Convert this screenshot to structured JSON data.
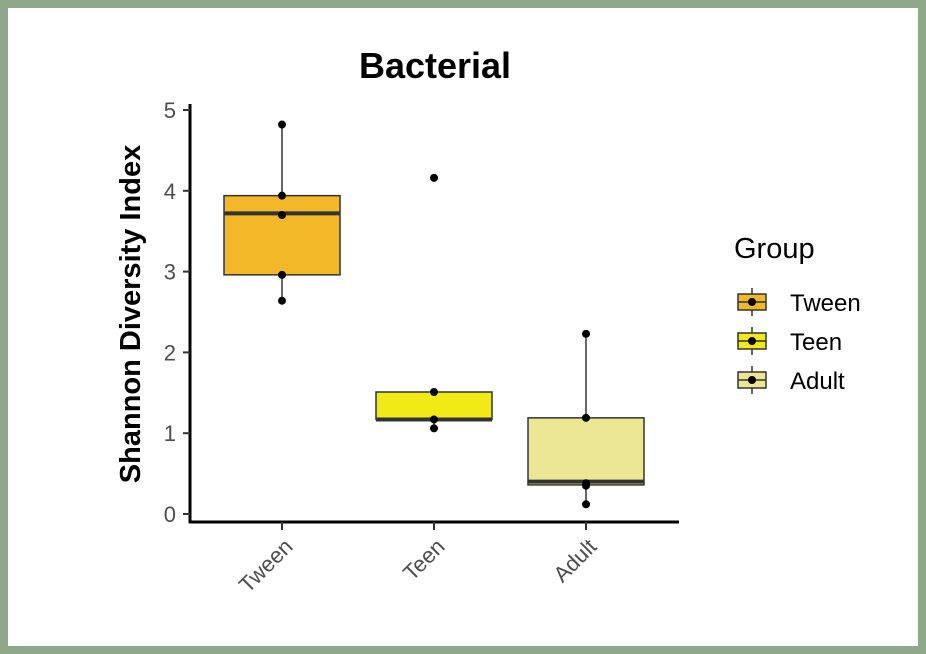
{
  "chart_data": {
    "type": "box",
    "title": "Bacterial",
    "xlabel": "",
    "ylabel": "Shannon Diversity Index",
    "ylim": [
      0,
      5
    ],
    "yticks": [
      0,
      1,
      2,
      3,
      4,
      5
    ],
    "grid": false,
    "legend": {
      "title": "Group",
      "placement": "right"
    },
    "categories": [
      "Tween",
      "Teen",
      "Adult"
    ],
    "series": [
      {
        "name": "Tween",
        "color": "#f2b827",
        "q1": 2.96,
        "median": 3.72,
        "q3": 3.94,
        "whisker_low": 2.64,
        "whisker_high": 4.82,
        "outliers": [],
        "points": [
          4.82,
          3.94,
          3.7,
          2.96,
          2.64
        ]
      },
      {
        "name": "Teen",
        "color": "#f2ea14",
        "q1": 1.17,
        "median": 1.17,
        "q3": 1.51,
        "whisker_low": 1.06,
        "whisker_high": 1.51,
        "outliers": [
          4.16
        ],
        "points": [
          4.16,
          1.51,
          1.17,
          1.06
        ]
      },
      {
        "name": "Adult",
        "color": "#ece792",
        "q1": 0.36,
        "median": 0.4,
        "q3": 1.19,
        "whisker_low": 0.12,
        "whisker_high": 2.23,
        "outliers": [],
        "points": [
          2.23,
          1.19,
          0.38,
          0.35,
          0.12
        ]
      }
    ]
  }
}
